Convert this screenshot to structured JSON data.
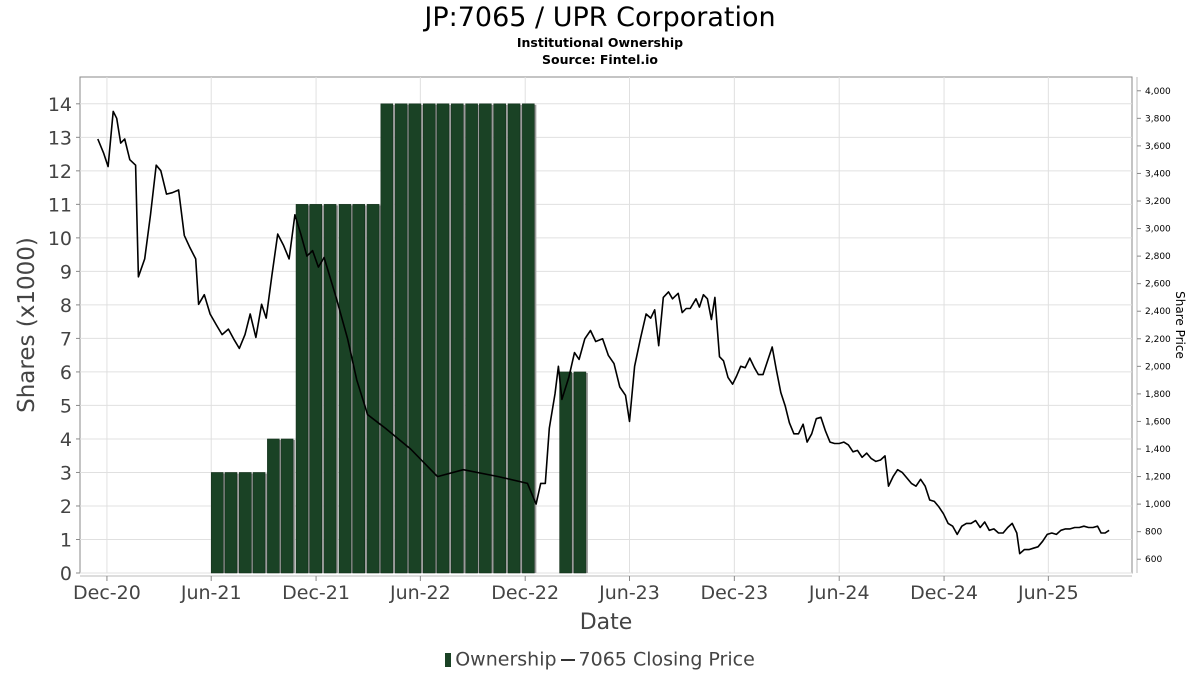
{
  "header": {
    "title": "JP:7065 / UPR Corporation",
    "subtitle1": "Institutional Ownership",
    "subtitle2": "Source: Fintel.io"
  },
  "legend": {
    "ownership": "Ownership",
    "price": "7065 Closing Price"
  },
  "colors": {
    "bar_fill": "#1a4225",
    "bar_shadow": "#9a9a9a",
    "line": "#000000",
    "grid": "#e0e0e0"
  },
  "chart_data": {
    "type": "bar",
    "title": "JP:7065 / UPR Corporation",
    "xlabel": "Date",
    "ylabel": "Shares (x1000)",
    "y2label": "Share Price",
    "x_ticks": [
      "Dec-20",
      "Jun-21",
      "Dec-21",
      "Jun-22",
      "Dec-22",
      "Jun-23",
      "Dec-23",
      "Jun-24",
      "Dec-24",
      "Jun-25"
    ],
    "y_ticks": [
      0,
      1,
      2,
      3,
      4,
      5,
      6,
      7,
      8,
      9,
      10,
      11,
      12,
      13,
      14
    ],
    "y2_ticks": [
      600,
      800,
      1000,
      1200,
      1400,
      1600,
      1800,
      2000,
      2200,
      2400,
      2600,
      2800,
      3000,
      3200,
      3400,
      3600,
      3800,
      4000
    ],
    "ylim": [
      0,
      14.8
    ],
    "y2lim": [
      500,
      4100
    ],
    "xlim": [
      "2020-10-15",
      "2025-10-25"
    ],
    "grid": true,
    "series": [
      {
        "name": "Ownership",
        "type": "bar",
        "points": [
          {
            "date": "2021-06-01",
            "value": 3
          },
          {
            "date": "2021-06-25",
            "value": 3
          },
          {
            "date": "2021-07-20",
            "value": 3
          },
          {
            "date": "2021-08-13",
            "value": 3
          },
          {
            "date": "2021-09-07",
            "value": 4
          },
          {
            "date": "2021-10-01",
            "value": 4
          },
          {
            "date": "2021-10-27",
            "value": 11
          },
          {
            "date": "2021-11-20",
            "value": 11
          },
          {
            "date": "2021-12-15",
            "value": 11
          },
          {
            "date": "2022-01-10",
            "value": 11
          },
          {
            "date": "2022-02-03",
            "value": 11
          },
          {
            "date": "2022-02-28",
            "value": 11
          },
          {
            "date": "2022-03-24",
            "value": 14
          },
          {
            "date": "2022-04-18",
            "value": 14
          },
          {
            "date": "2022-05-12",
            "value": 14
          },
          {
            "date": "2022-06-06",
            "value": 14
          },
          {
            "date": "2022-06-30",
            "value": 14
          },
          {
            "date": "2022-07-25",
            "value": 14
          },
          {
            "date": "2022-08-19",
            "value": 14
          },
          {
            "date": "2022-09-12",
            "value": 14
          },
          {
            "date": "2022-10-07",
            "value": 14
          },
          {
            "date": "2022-11-01",
            "value": 14
          },
          {
            "date": "2022-11-26",
            "value": 14
          },
          {
            "date": "2023-01-30",
            "value": 6
          },
          {
            "date": "2023-02-24",
            "value": 6
          }
        ]
      },
      {
        "name": "7065 Closing Price",
        "type": "line",
        "points": [
          {
            "date": "2020-11-15",
            "value": 3650
          },
          {
            "date": "2020-11-25",
            "value": 3550
          },
          {
            "date": "2020-12-03",
            "value": 3450
          },
          {
            "date": "2020-12-12",
            "value": 3850
          },
          {
            "date": "2020-12-18",
            "value": 3800
          },
          {
            "date": "2020-12-25",
            "value": 3620
          },
          {
            "date": "2021-01-01",
            "value": 3650
          },
          {
            "date": "2021-01-10",
            "value": 3500
          },
          {
            "date": "2021-01-20",
            "value": 3460
          },
          {
            "date": "2021-01-25",
            "value": 2650
          },
          {
            "date": "2021-02-05",
            "value": 2780
          },
          {
            "date": "2021-02-15",
            "value": 3100
          },
          {
            "date": "2021-02-25",
            "value": 3460
          },
          {
            "date": "2021-03-05",
            "value": 3420
          },
          {
            "date": "2021-03-15",
            "value": 3250
          },
          {
            "date": "2021-03-25",
            "value": 3260
          },
          {
            "date": "2021-04-05",
            "value": 3280
          },
          {
            "date": "2021-04-15",
            "value": 2950
          },
          {
            "date": "2021-04-25",
            "value": 2860
          },
          {
            "date": "2021-05-05",
            "value": 2780
          },
          {
            "date": "2021-05-10",
            "value": 2450
          },
          {
            "date": "2021-05-20",
            "value": 2520
          },
          {
            "date": "2021-05-30",
            "value": 2380
          },
          {
            "date": "2021-06-10",
            "value": 2300
          },
          {
            "date": "2021-06-20",
            "value": 2230
          },
          {
            "date": "2021-07-01",
            "value": 2270
          },
          {
            "date": "2021-07-10",
            "value": 2200
          },
          {
            "date": "2021-07-20",
            "value": 2130
          },
          {
            "date": "2021-07-30",
            "value": 2230
          },
          {
            "date": "2021-08-08",
            "value": 2380
          },
          {
            "date": "2021-08-18",
            "value": 2210
          },
          {
            "date": "2021-08-28",
            "value": 2450
          },
          {
            "date": "2021-09-05",
            "value": 2350
          },
          {
            "date": "2021-09-15",
            "value": 2660
          },
          {
            "date": "2021-09-25",
            "value": 2960
          },
          {
            "date": "2021-10-05",
            "value": 2880
          },
          {
            "date": "2021-10-15",
            "value": 2780
          },
          {
            "date": "2021-10-25",
            "value": 3100
          },
          {
            "date": "2021-11-05",
            "value": 2950
          },
          {
            "date": "2021-11-15",
            "value": 2800
          },
          {
            "date": "2021-11-25",
            "value": 2840
          },
          {
            "date": "2021-12-05",
            "value": 2720
          },
          {
            "date": "2021-12-15",
            "value": 2790
          },
          {
            "date": "2022-01-05",
            "value": 2500
          },
          {
            "date": "2022-01-25",
            "value": 2200
          },
          {
            "date": "2022-02-10",
            "value": 1900
          },
          {
            "date": "2022-03-01",
            "value": 1650
          },
          {
            "date": "2022-04-01",
            "value": 1550
          },
          {
            "date": "2022-05-15",
            "value": 1400
          },
          {
            "date": "2022-07-01",
            "value": 1200
          },
          {
            "date": "2022-08-15",
            "value": 1250
          },
          {
            "date": "2022-10-15",
            "value": 1200
          },
          {
            "date": "2022-12-05",
            "value": 1150
          },
          {
            "date": "2022-12-20",
            "value": 1000
          },
          {
            "date": "2022-12-28",
            "value": 1150
          },
          {
            "date": "2023-01-05",
            "value": 1150
          },
          {
            "date": "2023-01-12",
            "value": 1550
          },
          {
            "date": "2023-01-22",
            "value": 1800
          },
          {
            "date": "2023-01-28",
            "value": 2000
          },
          {
            "date": "2023-02-03",
            "value": 1760
          },
          {
            "date": "2023-02-15",
            "value": 1920
          },
          {
            "date": "2023-02-25",
            "value": 2100
          },
          {
            "date": "2023-03-05",
            "value": 2050
          },
          {
            "date": "2023-03-15",
            "value": 2200
          },
          {
            "date": "2023-03-25",
            "value": 2260
          },
          {
            "date": "2023-04-03",
            "value": 2180
          },
          {
            "date": "2023-04-15",
            "value": 2200
          },
          {
            "date": "2023-04-25",
            "value": 2080
          },
          {
            "date": "2023-05-05",
            "value": 2020
          },
          {
            "date": "2023-05-15",
            "value": 1850
          },
          {
            "date": "2023-05-25",
            "value": 1790
          },
          {
            "date": "2023-06-01",
            "value": 1600
          },
          {
            "date": "2023-06-10",
            "value": 2000
          },
          {
            "date": "2023-06-20",
            "value": 2200
          },
          {
            "date": "2023-06-30",
            "value": 2380
          },
          {
            "date": "2023-07-08",
            "value": 2350
          },
          {
            "date": "2023-07-15",
            "value": 2410
          },
          {
            "date": "2023-07-22",
            "value": 2150
          },
          {
            "date": "2023-07-30",
            "value": 2500
          },
          {
            "date": "2023-08-08",
            "value": 2540
          },
          {
            "date": "2023-08-15",
            "value": 2490
          },
          {
            "date": "2023-08-25",
            "value": 2530
          },
          {
            "date": "2023-09-01",
            "value": 2390
          },
          {
            "date": "2023-09-08",
            "value": 2420
          },
          {
            "date": "2023-09-15",
            "value": 2420
          },
          {
            "date": "2023-09-25",
            "value": 2490
          },
          {
            "date": "2023-10-01",
            "value": 2430
          },
          {
            "date": "2023-10-08",
            "value": 2520
          },
          {
            "date": "2023-10-15",
            "value": 2490
          },
          {
            "date": "2023-10-22",
            "value": 2340
          },
          {
            "date": "2023-10-28",
            "value": 2500
          },
          {
            "date": "2023-11-05",
            "value": 2070
          },
          {
            "date": "2023-11-12",
            "value": 2040
          },
          {
            "date": "2023-11-20",
            "value": 1920
          },
          {
            "date": "2023-11-28",
            "value": 1870
          },
          {
            "date": "2023-12-05",
            "value": 1930
          },
          {
            "date": "2023-12-12",
            "value": 2000
          },
          {
            "date": "2023-12-20",
            "value": 1990
          },
          {
            "date": "2023-12-28",
            "value": 2060
          },
          {
            "date": "2024-01-05",
            "value": 1990
          },
          {
            "date": "2024-01-12",
            "value": 1940
          },
          {
            "date": "2024-01-20",
            "value": 1940
          },
          {
            "date": "2024-01-28",
            "value": 2040
          },
          {
            "date": "2024-02-05",
            "value": 2140
          },
          {
            "date": "2024-02-12",
            "value": 1980
          },
          {
            "date": "2024-02-20",
            "value": 1810
          },
          {
            "date": "2024-02-28",
            "value": 1710
          },
          {
            "date": "2024-03-06",
            "value": 1590
          },
          {
            "date": "2024-03-14",
            "value": 1510
          },
          {
            "date": "2024-03-22",
            "value": 1510
          },
          {
            "date": "2024-03-30",
            "value": 1580
          },
          {
            "date": "2024-04-06",
            "value": 1450
          },
          {
            "date": "2024-04-14",
            "value": 1510
          },
          {
            "date": "2024-04-22",
            "value": 1620
          },
          {
            "date": "2024-04-30",
            "value": 1630
          },
          {
            "date": "2024-05-08",
            "value": 1530
          },
          {
            "date": "2024-05-16",
            "value": 1450
          },
          {
            "date": "2024-05-24",
            "value": 1440
          },
          {
            "date": "2024-06-01",
            "value": 1440
          },
          {
            "date": "2024-06-09",
            "value": 1450
          },
          {
            "date": "2024-06-17",
            "value": 1430
          },
          {
            "date": "2024-06-25",
            "value": 1380
          },
          {
            "date": "2024-07-03",
            "value": 1390
          },
          {
            "date": "2024-07-11",
            "value": 1340
          },
          {
            "date": "2024-07-19",
            "value": 1370
          },
          {
            "date": "2024-07-27",
            "value": 1330
          },
          {
            "date": "2024-08-04",
            "value": 1310
          },
          {
            "date": "2024-08-12",
            "value": 1320
          },
          {
            "date": "2024-08-20",
            "value": 1350
          },
          {
            "date": "2024-08-26",
            "value": 1130
          },
          {
            "date": "2024-09-03",
            "value": 1200
          },
          {
            "date": "2024-09-11",
            "value": 1250
          },
          {
            "date": "2024-09-19",
            "value": 1230
          },
          {
            "date": "2024-09-27",
            "value": 1190
          },
          {
            "date": "2024-10-05",
            "value": 1150
          },
          {
            "date": "2024-10-13",
            "value": 1130
          },
          {
            "date": "2024-10-21",
            "value": 1180
          },
          {
            "date": "2024-10-29",
            "value": 1130
          },
          {
            "date": "2024-11-06",
            "value": 1030
          },
          {
            "date": "2024-11-14",
            "value": 1020
          },
          {
            "date": "2024-11-22",
            "value": 980
          },
          {
            "date": "2024-11-30",
            "value": 930
          },
          {
            "date": "2024-12-08",
            "value": 860
          },
          {
            "date": "2024-12-16",
            "value": 840
          },
          {
            "date": "2024-12-24",
            "value": 780
          },
          {
            "date": "2025-01-01",
            "value": 840
          },
          {
            "date": "2025-01-09",
            "value": 860
          },
          {
            "date": "2025-01-17",
            "value": 860
          },
          {
            "date": "2025-01-25",
            "value": 880
          },
          {
            "date": "2025-02-02",
            "value": 830
          },
          {
            "date": "2025-02-10",
            "value": 870
          },
          {
            "date": "2025-02-18",
            "value": 810
          },
          {
            "date": "2025-02-26",
            "value": 820
          },
          {
            "date": "2025-03-06",
            "value": 790
          },
          {
            "date": "2025-03-14",
            "value": 790
          },
          {
            "date": "2025-03-22",
            "value": 830
          },
          {
            "date": "2025-03-30",
            "value": 860
          },
          {
            "date": "2025-04-07",
            "value": 790
          },
          {
            "date": "2025-04-12",
            "value": 640
          },
          {
            "date": "2025-04-20",
            "value": 670
          },
          {
            "date": "2025-04-28",
            "value": 670
          },
          {
            "date": "2025-05-06",
            "value": 680
          },
          {
            "date": "2025-05-14",
            "value": 690
          },
          {
            "date": "2025-05-22",
            "value": 730
          },
          {
            "date": "2025-05-30",
            "value": 780
          },
          {
            "date": "2025-06-07",
            "value": 790
          },
          {
            "date": "2025-06-15",
            "value": 780
          },
          {
            "date": "2025-06-23",
            "value": 810
          },
          {
            "date": "2025-07-01",
            "value": 820
          },
          {
            "date": "2025-07-09",
            "value": 820
          },
          {
            "date": "2025-07-17",
            "value": 830
          },
          {
            "date": "2025-07-25",
            "value": 830
          },
          {
            "date": "2025-08-02",
            "value": 840
          },
          {
            "date": "2025-08-10",
            "value": 830
          },
          {
            "date": "2025-08-18",
            "value": 830
          },
          {
            "date": "2025-08-26",
            "value": 840
          },
          {
            "date": "2025-09-01",
            "value": 790
          },
          {
            "date": "2025-09-08",
            "value": 790
          },
          {
            "date": "2025-09-15",
            "value": 810
          }
        ]
      }
    ]
  }
}
